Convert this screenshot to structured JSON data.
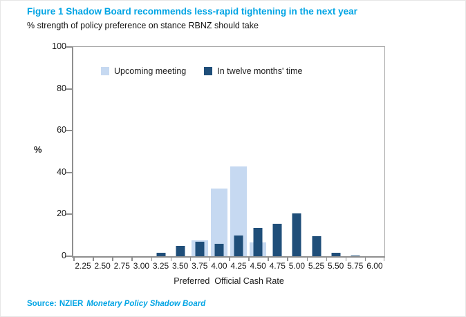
{
  "figure": {
    "title": "Figure 1 Shadow Board recommends less-rapid tightening in the next year",
    "subtitle": "% strength of policy preference on stance RBNZ should take",
    "source_prefix": "Source:",
    "source_org": "NZIER",
    "source_work": "Monetary Policy Shadow Board"
  },
  "colors": {
    "title_blue": "#00A4E4",
    "light_series": "#C6D9F1",
    "dark_series": "#1F4E79",
    "axis_gray": "#8F8F8F",
    "text_black": "#1A1A1A"
  },
  "chart_data": {
    "type": "bar",
    "bar_style": "overlapped",
    "title": "Figure 1 Shadow Board recommends less-rapid tightening in the next year",
    "subtitle": "% strength of policy preference on stance RBNZ should take",
    "categories": [
      "2.25",
      "2.50",
      "2.75",
      "3.00",
      "3.25",
      "3.50",
      "3.75",
      "4.00",
      "4.25",
      "4.50",
      "4.75",
      "5.00",
      "5.25",
      "5.50",
      "5.75",
      "6.00"
    ],
    "series": [
      {
        "name": "Upcoming meeting",
        "color": "#C6D9F1",
        "values": [
          0,
          0,
          0,
          0,
          0,
          0,
          7.5,
          32.5,
          43,
          6.5,
          0,
          0,
          0,
          0,
          0,
          0
        ]
      },
      {
        "name": "In twelve months' time",
        "color": "#1F4E79",
        "values": [
          0,
          0,
          0,
          0,
          1.5,
          5,
          7,
          6,
          10,
          13.5,
          15.5,
          20.5,
          9.5,
          1.5,
          0.5,
          0
        ]
      }
    ],
    "xlabel": "Preferred  Official Cash Rate",
    "ylabel": "%",
    "ylim": [
      0,
      100
    ],
    "yticks": [
      0,
      20,
      40,
      60,
      80,
      100
    ],
    "grid": false,
    "legend_position": "top-inside"
  }
}
